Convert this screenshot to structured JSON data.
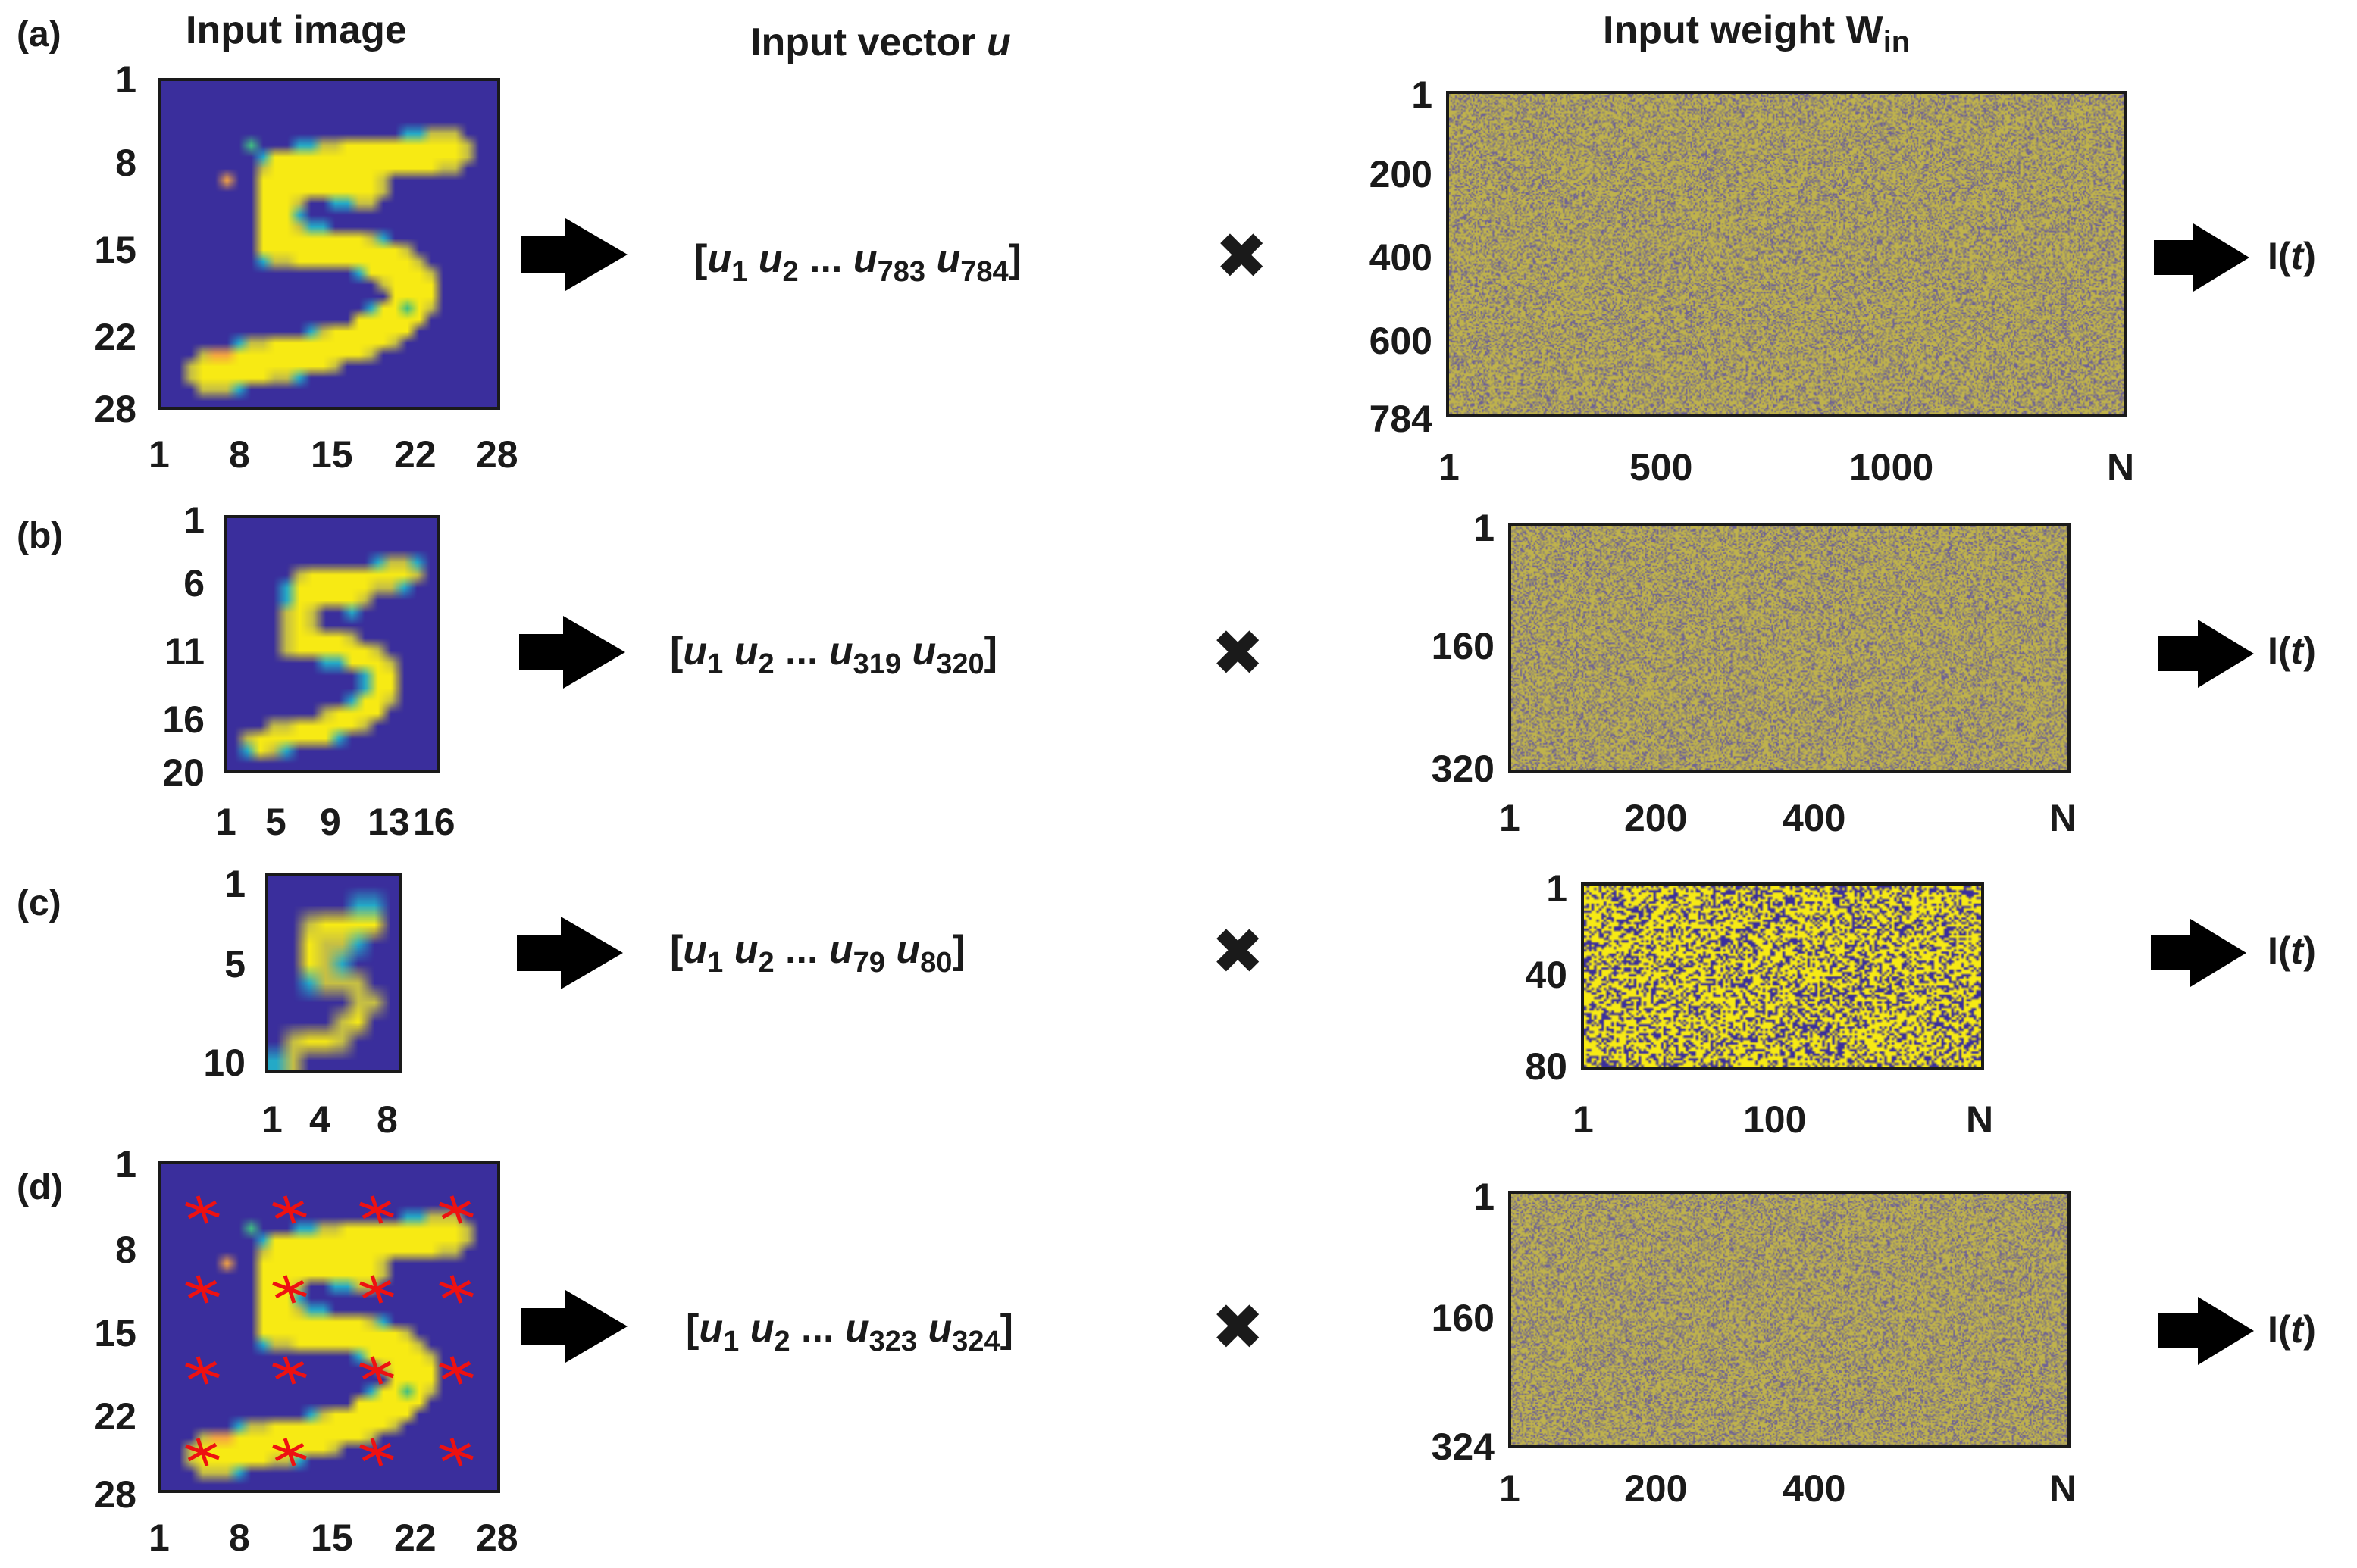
{
  "headers": {
    "input_image": "Input image",
    "input_vector_prefix": "Input vector",
    "input_vector_symbol": "u",
    "input_weight_prefix": "Input weight W",
    "input_weight_sub": "in"
  },
  "colors": {
    "background_navy": "#3a2e9c",
    "yellow": "#f7ea14",
    "green": "#3fbf82",
    "teal": "#24a9c7",
    "orange": "#f5a442",
    "olive": "#c6bf44",
    "marker_red": "#ee1111",
    "text": "#1a1a1a"
  },
  "rows": [
    {
      "label": "(a)",
      "image_yticks": [
        "1",
        "8",
        "15",
        "22",
        "28"
      ],
      "image_xticks": [
        "1",
        "8",
        "15",
        "22",
        "28"
      ],
      "vector": {
        "u1": "u",
        "s1": "1",
        "u2": "u",
        "s2": "2",
        "dots": "...",
        "un1": "u",
        "sn1": "783",
        "un": "u",
        "sn": "784"
      },
      "multiply": "✖",
      "weight_yticks": [
        "1",
        "200",
        "400",
        "600",
        "784"
      ],
      "weight_xticks": [
        "1",
        "500",
        "1000",
        "N"
      ],
      "output": "I(",
      "output_t": "t",
      "output_close": ")"
    },
    {
      "label": "(b)",
      "image_yticks": [
        "1",
        "6",
        "11",
        "16",
        "20"
      ],
      "image_xticks": [
        "1",
        "5",
        "9",
        "13",
        "16"
      ],
      "vector": {
        "u1": "u",
        "s1": "1",
        "u2": "u",
        "s2": "2",
        "dots": "...",
        "un1": "u",
        "sn1": "319",
        "un": "u",
        "sn": "320"
      },
      "multiply": "✖",
      "weight_yticks": [
        "1",
        "160",
        "320"
      ],
      "weight_xticks": [
        "1",
        "200",
        "400",
        "N"
      ],
      "output": "I(",
      "output_t": "t",
      "output_close": ")"
    },
    {
      "label": "(c)",
      "image_yticks": [
        "1",
        "5",
        "10"
      ],
      "image_xticks": [
        "1",
        "4",
        "8"
      ],
      "vector": {
        "u1": "u",
        "s1": "1",
        "u2": "u",
        "s2": "2",
        "dots": "...",
        "un1": "u",
        "sn1": "79",
        "un": "u",
        "sn": "80"
      },
      "multiply": "✖",
      "weight_yticks": [
        "1",
        "40",
        "80"
      ],
      "weight_xticks": [
        "1",
        "100",
        "N"
      ],
      "output": "I(",
      "output_t": "t",
      "output_close": ")"
    },
    {
      "label": "(d)",
      "image_yticks": [
        "1",
        "8",
        "15",
        "22",
        "28"
      ],
      "image_xticks": [
        "1",
        "8",
        "15",
        "22",
        "28"
      ],
      "vector": {
        "u1": "u",
        "s1": "1",
        "u2": "u",
        "s2": "2",
        "dots": "...",
        "un1": "u",
        "sn1": "323",
        "un": "u",
        "sn": "324"
      },
      "multiply": "✖",
      "weight_yticks": [
        "1",
        "160",
        "324"
      ],
      "weight_xticks": [
        "1",
        "200",
        "400",
        "N"
      ],
      "output": "I(",
      "output_t": "t",
      "output_close": ")"
    }
  ]
}
